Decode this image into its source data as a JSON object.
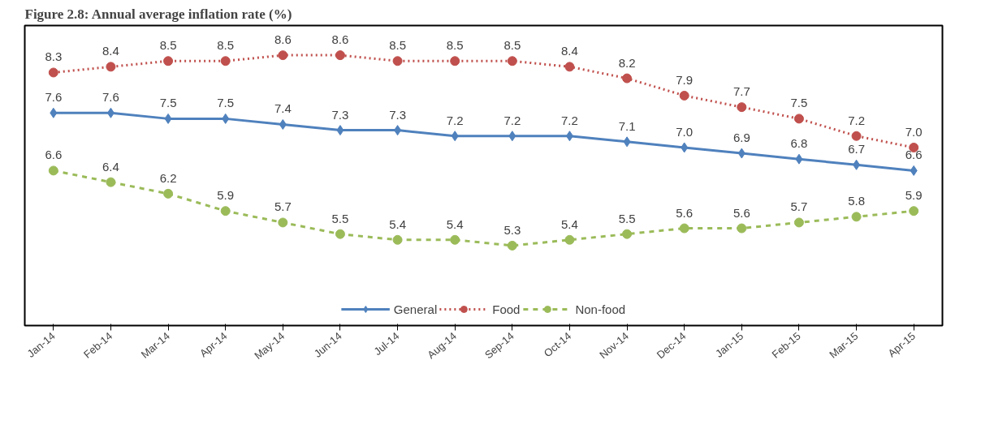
{
  "chart_data": {
    "type": "line",
    "title": "Figure 2.8: Annual average inflation rate (%)",
    "categories": [
      "Jan-14",
      "Feb-14",
      "Mar-14",
      "Apr-14",
      "May-14",
      "Jun-14",
      "Jul-14",
      "Aug-14",
      "Sep-14",
      "Oct-14",
      "Nov-14",
      "Dec-14",
      "Jan-15",
      "Feb-15",
      "Mar-15",
      "Apr-15"
    ],
    "series": [
      {
        "name": "General",
        "color": "#4f81bd",
        "marker": "diamond",
        "line_style": "solid",
        "values": [
          7.6,
          7.6,
          7.5,
          7.5,
          7.4,
          7.3,
          7.3,
          7.2,
          7.2,
          7.2,
          7.1,
          7.0,
          6.9,
          6.8,
          6.7,
          6.6
        ],
        "value_labels": [
          "7.6",
          "7.6",
          "7.5",
          "7.5",
          "7.4",
          "7.3",
          "7.3",
          "7.2",
          "7.2",
          "7.2",
          "7.1",
          "7.0",
          "6.9",
          "6.8",
          "6.7",
          "6.6"
        ]
      },
      {
        "name": "Food",
        "color": "#c0504d",
        "marker": "circle",
        "line_style": "dotted",
        "values": [
          8.3,
          8.4,
          8.5,
          8.5,
          8.6,
          8.6,
          8.5,
          8.5,
          8.5,
          8.4,
          8.2,
          7.9,
          7.7,
          7.5,
          7.2,
          7.0
        ],
        "value_labels": [
          "8.3",
          "8.4",
          "8.5",
          "8.5",
          "8.6",
          "8.6",
          "8.5",
          "8.5",
          "8.5",
          "8.4",
          "8.2",
          "7.9",
          "7.7",
          "7.5",
          "7.2",
          "7.0"
        ]
      },
      {
        "name": "Non-food",
        "color": "#9bbb59",
        "marker": "circle",
        "line_style": "dashed",
        "values": [
          6.6,
          6.4,
          6.2,
          5.9,
          5.7,
          5.5,
          5.4,
          5.4,
          5.3,
          5.4,
          5.5,
          5.6,
          5.6,
          5.7,
          5.8,
          5.9
        ],
        "value_labels": [
          "6.6",
          "6.4",
          "6.2",
          "5.9",
          "5.7",
          "5.5",
          "5.4",
          "5.4",
          "5.3",
          "5.4",
          "5.5",
          "5.6",
          "5.6",
          "5.7",
          "5.8",
          "5.9"
        ]
      }
    ],
    "legend": "bottom",
    "grid": false
  }
}
